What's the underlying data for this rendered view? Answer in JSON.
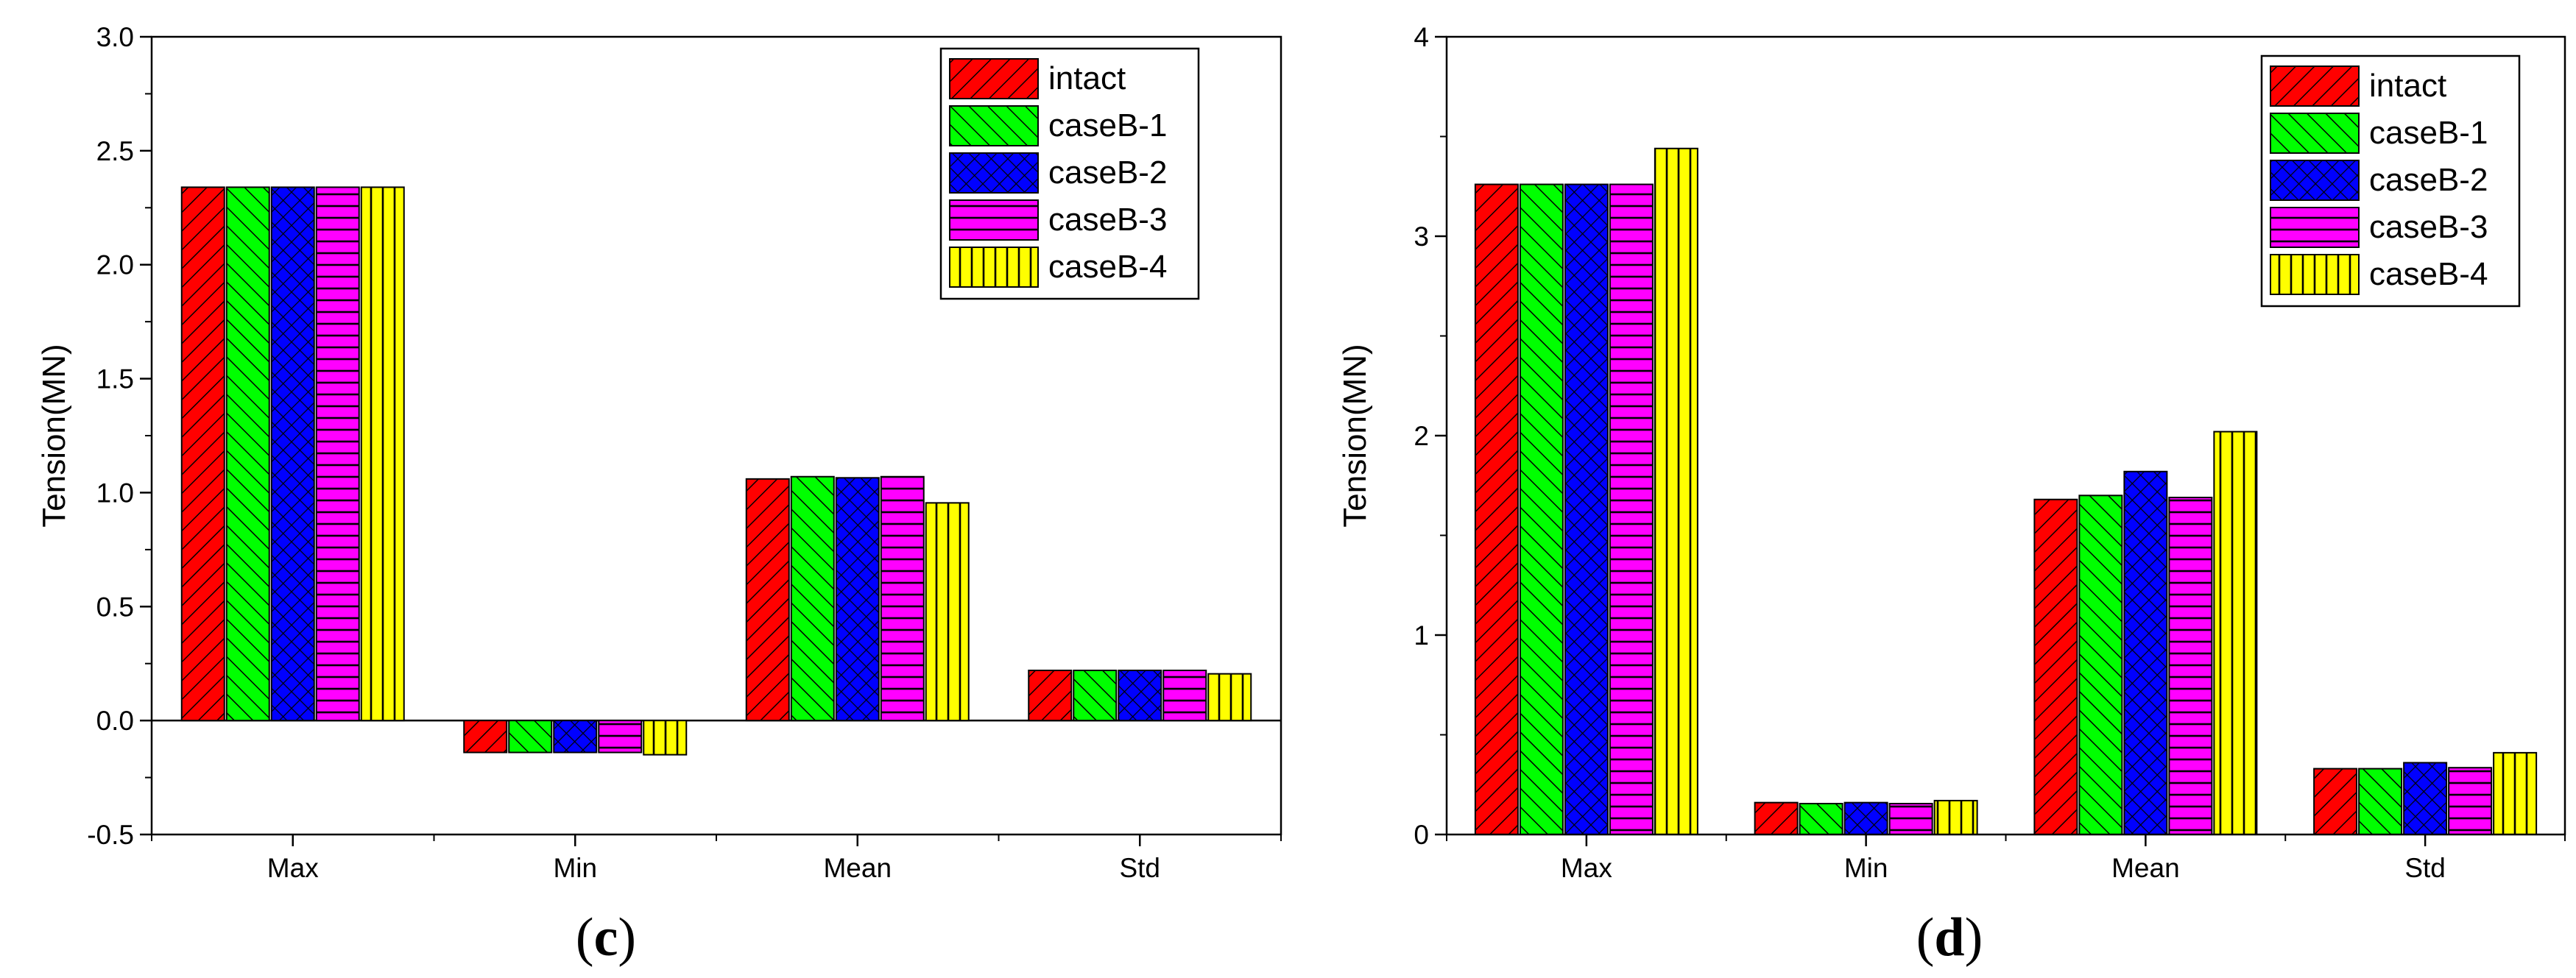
{
  "chart_data": [
    {
      "panel_label": "(c)",
      "panel_letter": "c",
      "type": "bar",
      "ylabel": "Tension(MN)",
      "ylim": [
        -0.5,
        3.0
      ],
      "yticks": [
        "-0.5",
        "0.0",
        "0.5",
        "1.0",
        "1.5",
        "2.0",
        "2.5",
        "3.0"
      ],
      "categories": [
        "Max",
        "Min",
        "Mean",
        "Std"
      ],
      "legend_position": "top-right",
      "series": [
        {
          "name": "intact",
          "color": "#ff0000",
          "pattern": "diag-right",
          "values": [
            2.34,
            -0.14,
            1.06,
            0.22
          ]
        },
        {
          "name": "caseB-1",
          "color": "#00ff00",
          "pattern": "diag-left",
          "values": [
            2.34,
            -0.14,
            1.07,
            0.22
          ]
        },
        {
          "name": "caseB-2",
          "color": "#0000ff",
          "pattern": "cross",
          "values": [
            2.34,
            -0.14,
            1.065,
            0.22
          ]
        },
        {
          "name": "caseB-3",
          "color": "#ff00ff",
          "pattern": "horizontal",
          "values": [
            2.34,
            -0.14,
            1.07,
            0.22
          ]
        },
        {
          "name": "caseB-4",
          "color": "#ffff00",
          "pattern": "vertical",
          "values": [
            2.34,
            -0.15,
            0.955,
            0.205
          ]
        }
      ]
    },
    {
      "panel_label": "(d)",
      "panel_letter": "d",
      "type": "bar",
      "ylabel": "Tension(MN)",
      "ylim": [
        0,
        4
      ],
      "yticks": [
        "0",
        "1",
        "2",
        "3",
        "4"
      ],
      "categories": [
        "Max",
        "Min",
        "Mean",
        "Std"
      ],
      "legend_position": "top-right",
      "series": [
        {
          "name": "intact",
          "color": "#ff0000",
          "pattern": "diag-right",
          "values": [
            3.26,
            0.16,
            1.68,
            0.33
          ]
        },
        {
          "name": "caseB-1",
          "color": "#00ff00",
          "pattern": "diag-left",
          "values": [
            3.26,
            0.155,
            1.7,
            0.33
          ]
        },
        {
          "name": "caseB-2",
          "color": "#0000ff",
          "pattern": "cross",
          "values": [
            3.26,
            0.16,
            1.82,
            0.36
          ]
        },
        {
          "name": "caseB-3",
          "color": "#ff00ff",
          "pattern": "horizontal",
          "values": [
            3.26,
            0.155,
            1.69,
            0.335
          ]
        },
        {
          "name": "caseB-4",
          "color": "#ffff00",
          "pattern": "vertical",
          "values": [
            3.44,
            0.17,
            2.02,
            0.41
          ]
        }
      ]
    }
  ]
}
